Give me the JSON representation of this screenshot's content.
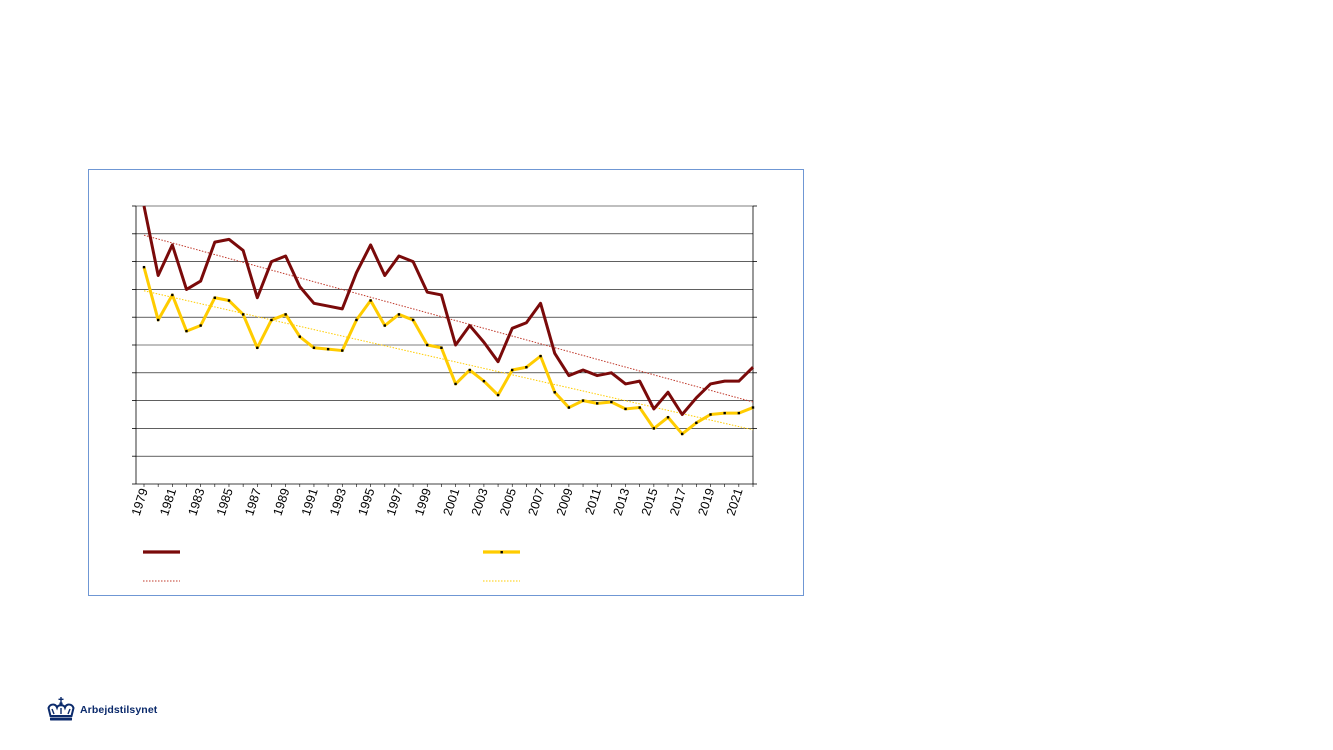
{
  "brand": {
    "name": "Arbejdstilsynet",
    "color": "#0b2a6b",
    "icon": "crown-icon"
  },
  "colors": {
    "frame_border": "#6f97d4",
    "series_1": "#7a0a0a",
    "series_2": "#ffcc00",
    "trend_1": "#c0392b",
    "trend_2": "#ffcc00",
    "grid": "#000000"
  },
  "chart_data": {
    "type": "line",
    "x": [
      1979,
      1980,
      1981,
      1982,
      1983,
      1984,
      1985,
      1986,
      1987,
      1988,
      1989,
      1990,
      1991,
      1992,
      1993,
      1994,
      1995,
      1996,
      1997,
      1998,
      1999,
      2000,
      2001,
      2002,
      2003,
      2004,
      2005,
      2006,
      2007,
      2008,
      2009,
      2010,
      2011,
      2012,
      2013,
      2014,
      2015,
      2016,
      2017,
      2018,
      2019,
      2020,
      2021,
      2022
    ],
    "x_tick_labels": [
      "1979",
      "1981",
      "1983",
      "1985",
      "1987",
      "1989",
      "1991",
      "1993",
      "1995",
      "1997",
      "1999",
      "2001",
      "2003",
      "2005",
      "2007",
      "2009",
      "2011",
      "2013",
      "2015",
      "2017",
      "2019",
      "2021"
    ],
    "y_gridlines": 10,
    "ylim": [
      0,
      10
    ],
    "grid": true,
    "legend_placement": "bottom",
    "series": [
      {
        "style": "solid-dark-red",
        "values": [
          10.0,
          7.5,
          8.6,
          7.0,
          7.3,
          8.7,
          8.8,
          8.4,
          6.7,
          8.0,
          8.2,
          7.1,
          6.5,
          6.4,
          6.3,
          7.6,
          8.6,
          7.5,
          8.2,
          8.0,
          6.9,
          6.8,
          5.0,
          5.7,
          5.1,
          4.4,
          5.6,
          5.8,
          6.5,
          4.7,
          3.9,
          4.1,
          3.9,
          4.0,
          3.6,
          3.7,
          2.7,
          3.3,
          2.5,
          3.1,
          3.6,
          3.7,
          3.7,
          4.2
        ]
      },
      {
        "style": "solid-yellow-with-markers",
        "values": [
          7.8,
          5.9,
          6.8,
          5.5,
          5.7,
          6.7,
          6.6,
          6.1,
          4.9,
          5.9,
          6.1,
          5.3,
          4.9,
          4.85,
          4.8,
          5.9,
          6.6,
          5.7,
          6.1,
          5.9,
          5.0,
          4.9,
          3.6,
          4.1,
          3.7,
          3.2,
          4.1,
          4.2,
          4.6,
          3.3,
          2.75,
          3.0,
          2.9,
          2.95,
          2.7,
          2.75,
          2.0,
          2.4,
          1.8,
          2.2,
          2.5,
          2.55,
          2.55,
          2.75
        ]
      }
    ],
    "trendlines": [
      {
        "style": "dotted-red",
        "start": [
          1979,
          8.95
        ],
        "end": [
          2022,
          2.95
        ]
      },
      {
        "style": "dotted-yellow",
        "start": [
          1979,
          6.95
        ],
        "end": [
          2022,
          1.95
        ]
      }
    ]
  }
}
